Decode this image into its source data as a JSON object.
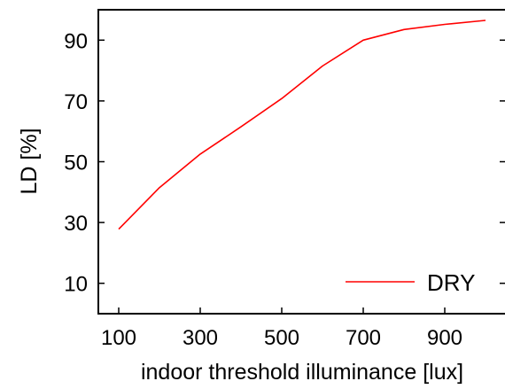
{
  "chart_data": {
    "type": "line",
    "xlabel": "indoor threshold illuminance [lux]",
    "ylabel": "LD [%]",
    "xlim": [
      50,
      1050
    ],
    "ylim": [
      0,
      100
    ],
    "xticks": [
      100,
      300,
      500,
      700,
      900
    ],
    "yticks": [
      10,
      30,
      50,
      70,
      90
    ],
    "x": [
      100,
      200,
      300,
      400,
      500,
      600,
      700,
      800,
      900,
      1000
    ],
    "series": [
      {
        "name": "DRY",
        "color": "#ff0000",
        "values": [
          27.8,
          41.5,
          52.5,
          61.5,
          70.8,
          81.5,
          90.0,
          93.5,
          95.2,
          96.5
        ]
      }
    ],
    "grid": false,
    "legend_position": "bottom-right"
  }
}
